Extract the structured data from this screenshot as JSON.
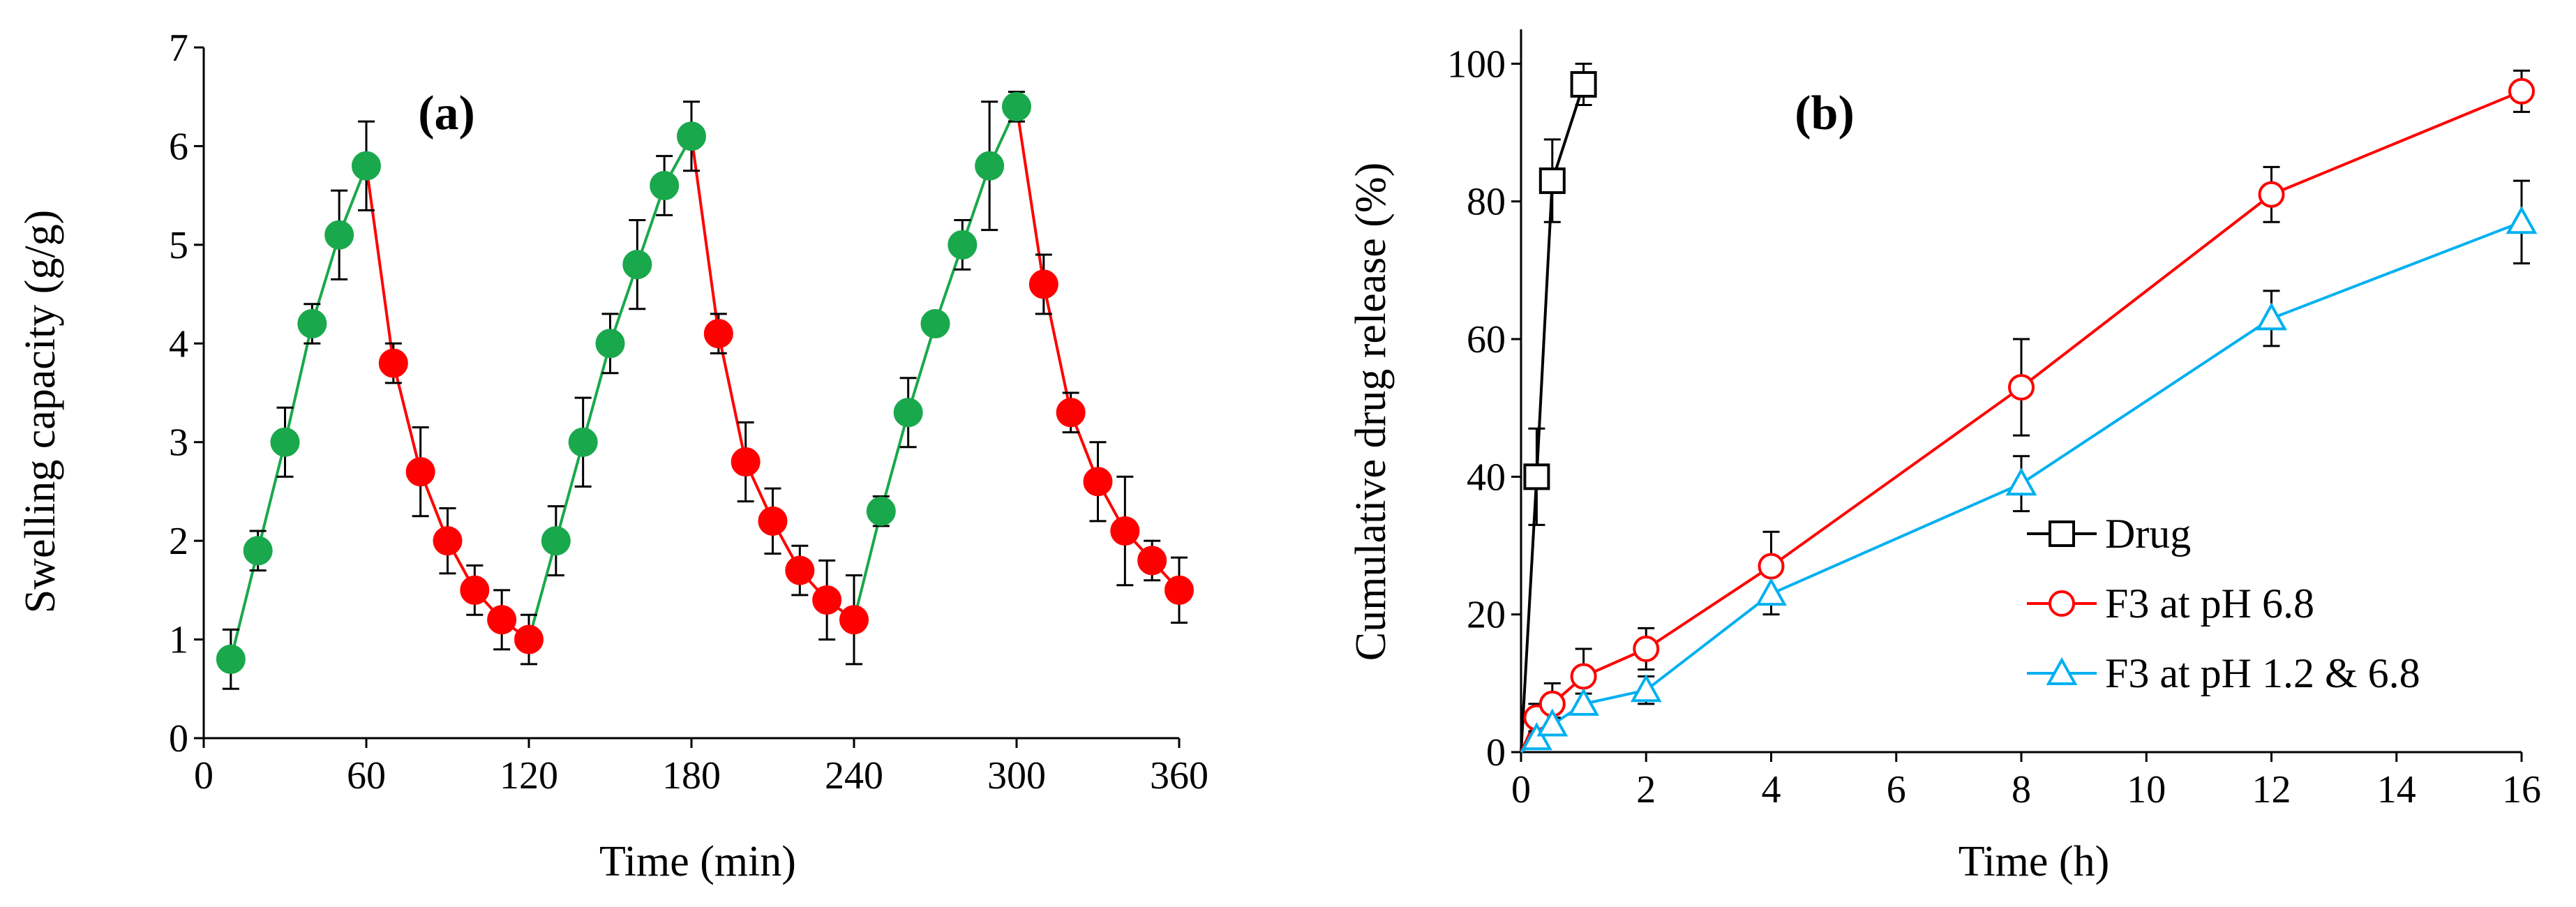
{
  "chart_data": [
    {
      "type": "line",
      "panel_label": "(a)",
      "xlabel": "Time (min)",
      "ylabel": "Swelling capacity (g/g)",
      "xlim": [
        0,
        360
      ],
      "ylim": [
        0,
        7
      ],
      "xticks": [
        0,
        60,
        120,
        180,
        240,
        300,
        360
      ],
      "yticks": [
        0,
        1,
        2,
        3,
        4,
        5,
        6,
        7
      ],
      "segment_colors": {
        "swelling": "#1aa84c",
        "deswelling": "#ff0000"
      },
      "segments": [
        {
          "phase": "swelling",
          "x": [
            10,
            20,
            30,
            40,
            50,
            60
          ],
          "y": [
            0.8,
            1.9,
            3.0,
            4.2,
            5.1,
            5.8
          ],
          "err": [
            0.3,
            0.2,
            0.35,
            0.2,
            0.45,
            0.45
          ]
        },
        {
          "phase": "deswelling",
          "x": [
            70,
            80,
            90,
            100,
            110,
            120
          ],
          "y": [
            3.8,
            2.7,
            2.0,
            1.5,
            1.2,
            1.0
          ],
          "err": [
            0.2,
            0.45,
            0.33,
            0.25,
            0.3,
            0.25
          ]
        },
        {
          "phase": "swelling",
          "x": [
            130,
            140,
            150,
            160,
            170,
            180
          ],
          "y": [
            2.0,
            3.0,
            4.0,
            4.8,
            5.6,
            6.1
          ],
          "err": [
            0.35,
            0.45,
            0.3,
            0.45,
            0.3,
            0.35
          ]
        },
        {
          "phase": "deswelling",
          "x": [
            190,
            200,
            210,
            220,
            230,
            240
          ],
          "y": [
            4.1,
            2.8,
            2.2,
            1.7,
            1.4,
            1.2
          ],
          "err": [
            0.2,
            0.4,
            0.33,
            0.25,
            0.4,
            0.45
          ]
        },
        {
          "phase": "swelling",
          "x": [
            250,
            260,
            270,
            280,
            290,
            300
          ],
          "y": [
            2.3,
            3.3,
            4.2,
            5.0,
            5.8,
            6.4
          ],
          "err": [
            0.15,
            0.35,
            0.0,
            0.25,
            0.65,
            0.15
          ]
        },
        {
          "phase": "deswelling",
          "x": [
            310,
            320,
            330,
            340,
            350,
            360
          ],
          "y": [
            4.6,
            3.3,
            2.6,
            2.1,
            1.8,
            1.5
          ],
          "err": [
            0.3,
            0.2,
            0.4,
            0.55,
            0.2,
            0.33
          ]
        }
      ]
    },
    {
      "type": "line",
      "panel_label": "(b)",
      "xlabel": "Time (h)",
      "ylabel": "Cumulative drug release (%)",
      "xlim": [
        0,
        16
      ],
      "ylim": [
        0,
        105
      ],
      "xticks": [
        0,
        2,
        4,
        6,
        8,
        10,
        12,
        14,
        16
      ],
      "yticks": [
        0,
        20,
        40,
        60,
        80,
        100
      ],
      "legend_position": "lower-right",
      "series": [
        {
          "name": "Drug",
          "marker": "square",
          "color": "#000000",
          "x": [
            0,
            0.25,
            0.5,
            1
          ],
          "y": [
            0,
            40,
            83,
            97
          ],
          "err": [
            0,
            7,
            6,
            3
          ]
        },
        {
          "name": "F3 at pH 6.8",
          "marker": "circle",
          "color": "#ff0000",
          "x": [
            0,
            0.25,
            0.5,
            1,
            2,
            4,
            8,
            12,
            16
          ],
          "y": [
            0,
            5,
            7,
            11,
            15,
            27,
            53,
            81,
            96
          ],
          "err": [
            0,
            2,
            3,
            4,
            3,
            5,
            7,
            4,
            3
          ]
        },
        {
          "name": "F3 at pH 1.2 & 6.8",
          "marker": "triangle",
          "color": "#00b0f0",
          "x": [
            0,
            0.25,
            0.5,
            1,
            2,
            4,
            8,
            12,
            16
          ],
          "y": [
            0,
            2,
            4,
            7,
            9,
            23,
            39,
            63,
            77
          ],
          "err": [
            0,
            1,
            1,
            1.5,
            2,
            3,
            4,
            4,
            6
          ]
        }
      ]
    }
  ]
}
